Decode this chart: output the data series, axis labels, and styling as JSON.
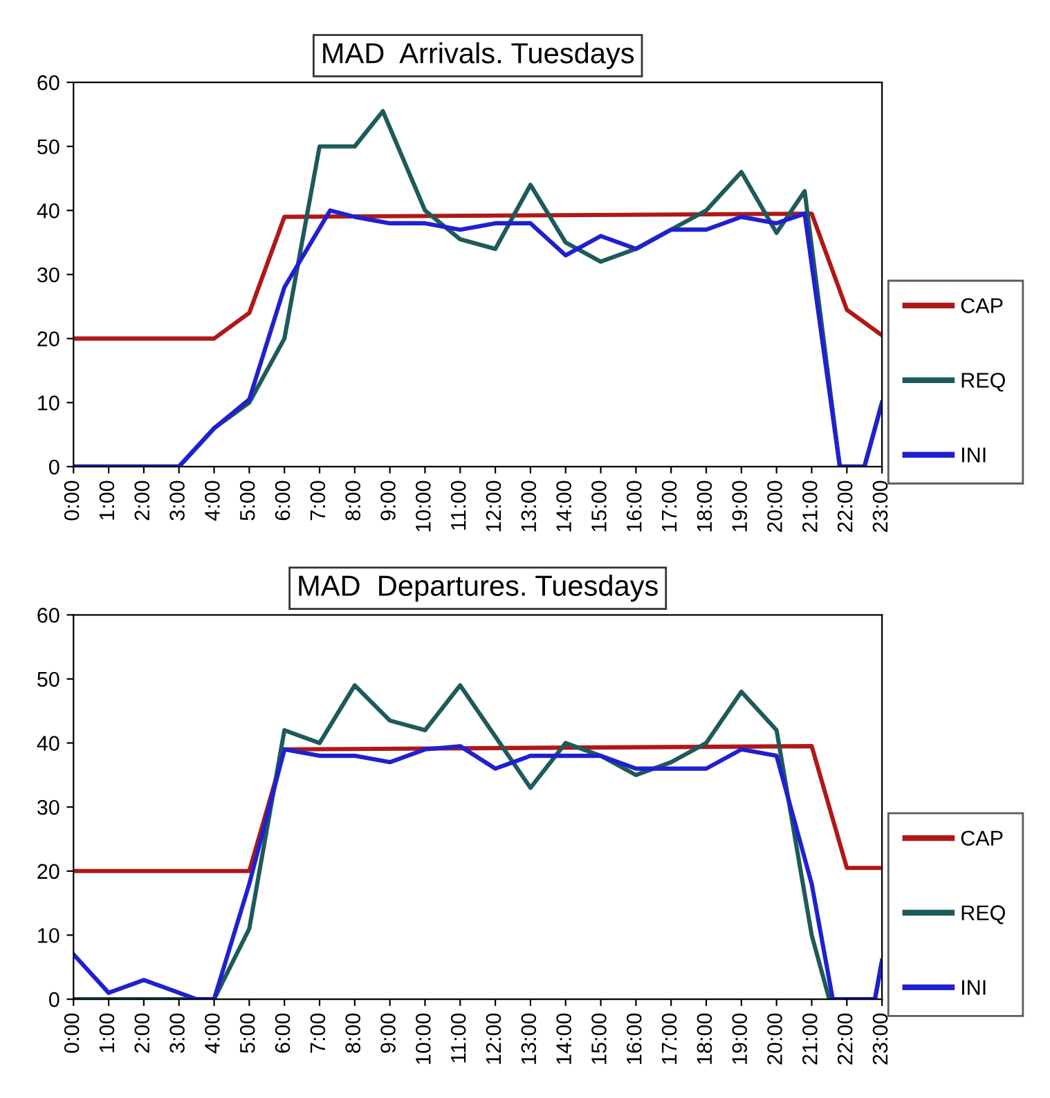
{
  "chart_data": [
    {
      "type": "line",
      "title": "MAD  Arrivals. Tuesdays",
      "xlim": [
        0,
        23
      ],
      "ylim": [
        0,
        60
      ],
      "yticks": [
        0,
        10,
        20,
        30,
        40,
        50,
        60
      ],
      "xticks": [
        {
          "value": 0,
          "label": "0:00"
        },
        {
          "value": 1,
          "label": "1:00"
        },
        {
          "value": 2,
          "label": "2:00"
        },
        {
          "value": 3,
          "label": "3:00"
        },
        {
          "value": 4,
          "label": "4:00"
        },
        {
          "value": 5,
          "label": "5:00"
        },
        {
          "value": 6,
          "label": "6:00"
        },
        {
          "value": 7,
          "label": "7:00"
        },
        {
          "value": 8,
          "label": "8:00"
        },
        {
          "value": 9,
          "label": "9:00"
        },
        {
          "value": 10,
          "label": "10:00"
        },
        {
          "value": 11,
          "label": "11:00"
        },
        {
          "value": 12,
          "label": "12:00"
        },
        {
          "value": 13,
          "label": "13:00"
        },
        {
          "value": 14,
          "label": "14:00"
        },
        {
          "value": 15,
          "label": "15:00"
        },
        {
          "value": 16,
          "label": "16:00"
        },
        {
          "value": 17,
          "label": "17:00"
        },
        {
          "value": 18,
          "label": "18:00"
        },
        {
          "value": 19,
          "label": "19:00"
        },
        {
          "value": 20,
          "label": "20:00"
        },
        {
          "value": 21,
          "label": "21:00"
        },
        {
          "value": 22,
          "label": "22:00"
        },
        {
          "value": 23,
          "label": "23:00"
        }
      ],
      "grid": false,
      "legend": "right",
      "marker": "none",
      "line_style": "solid",
      "series": [
        {
          "name": "CAP",
          "color": "#b01818",
          "x": [
            0,
            4,
            5,
            6,
            21,
            22,
            23
          ],
          "values": [
            20,
            20,
            24,
            39,
            39.5,
            24.5,
            20.5
          ]
        },
        {
          "name": "REQ",
          "color": "#1e5a5a",
          "x": [
            0,
            1,
            2,
            3,
            4,
            5,
            6,
            7,
            8,
            8.8,
            10,
            11,
            12,
            13,
            14,
            15,
            16,
            17,
            18,
            19,
            20,
            20.8,
            21.8,
            22.5,
            23
          ],
          "values": [
            0,
            0,
            0,
            0,
            6,
            10,
            20,
            50,
            50,
            55.5,
            40,
            35.5,
            34,
            44,
            35,
            32,
            34,
            37,
            40,
            46,
            36.5,
            43,
            0,
            0,
            10
          ]
        },
        {
          "name": "INI",
          "color": "#2020d0",
          "x": [
            0,
            1,
            2,
            3,
            4,
            5,
            6,
            7.3,
            8,
            9,
            10,
            11,
            12,
            13,
            14,
            15,
            16,
            17,
            18,
            19,
            20,
            20.8,
            21.8,
            22.5,
            23
          ],
          "values": [
            0,
            0,
            0,
            0,
            6,
            10.5,
            28,
            40,
            39,
            38,
            38,
            37,
            38,
            38,
            33,
            36,
            34,
            37,
            37,
            39,
            38,
            39.5,
            0,
            0,
            10
          ]
        }
      ]
    },
    {
      "type": "line",
      "title": "MAD  Departures. Tuesdays",
      "xlim": [
        0,
        23
      ],
      "ylim": [
        0,
        60
      ],
      "yticks": [
        0,
        10,
        20,
        30,
        40,
        50,
        60
      ],
      "xticks": [
        {
          "value": 0,
          "label": "0:00"
        },
        {
          "value": 1,
          "label": "1:00"
        },
        {
          "value": 2,
          "label": "2:00"
        },
        {
          "value": 3,
          "label": "3:00"
        },
        {
          "value": 4,
          "label": "4:00"
        },
        {
          "value": 5,
          "label": "5:00"
        },
        {
          "value": 6,
          "label": "6:00"
        },
        {
          "value": 7,
          "label": "7:00"
        },
        {
          "value": 8,
          "label": "8:00"
        },
        {
          "value": 9,
          "label": "9:00"
        },
        {
          "value": 10,
          "label": "10:00"
        },
        {
          "value": 11,
          "label": "11:00"
        },
        {
          "value": 12,
          "label": "12:00"
        },
        {
          "value": 13,
          "label": "13:00"
        },
        {
          "value": 14,
          "label": "14:00"
        },
        {
          "value": 15,
          "label": "15:00"
        },
        {
          "value": 16,
          "label": "16:00"
        },
        {
          "value": 17,
          "label": "17:00"
        },
        {
          "value": 18,
          "label": "18:00"
        },
        {
          "value": 19,
          "label": "19:00"
        },
        {
          "value": 20,
          "label": "20:00"
        },
        {
          "value": 21,
          "label": "21:00"
        },
        {
          "value": 22,
          "label": "22:00"
        },
        {
          "value": 23,
          "label": "23:00"
        }
      ],
      "grid": false,
      "legend": "right",
      "marker": "none",
      "line_style": "solid",
      "series": [
        {
          "name": "CAP",
          "color": "#b01818",
          "x": [
            0,
            5,
            6,
            21,
            22,
            23
          ],
          "values": [
            20,
            20,
            39,
            39.5,
            20.5,
            20.5
          ]
        },
        {
          "name": "REQ",
          "color": "#1e5a5a",
          "x": [
            0,
            1,
            2,
            3,
            4,
            5,
            6,
            7,
            8,
            9,
            10,
            11,
            12,
            13,
            14,
            15,
            16,
            17,
            18,
            19,
            20,
            21,
            21.5,
            22.8,
            23
          ],
          "values": [
            0,
            0,
            0,
            0,
            0,
            11,
            42,
            40,
            49,
            43.5,
            42,
            49,
            41,
            33,
            40,
            38,
            35,
            37,
            40,
            48,
            42,
            10,
            0,
            0,
            6
          ]
        },
        {
          "name": "INI",
          "color": "#2020d0",
          "x": [
            0,
            1,
            2,
            3,
            3.5,
            4,
            5,
            6,
            7,
            8,
            9,
            10,
            11,
            12,
            13,
            14,
            15,
            16,
            17,
            18,
            19,
            20,
            21,
            21.6,
            22.8,
            23
          ],
          "values": [
            7,
            1,
            3,
            1,
            0,
            0,
            18,
            39,
            38,
            38,
            37,
            39,
            39.5,
            36,
            38,
            38,
            38,
            36,
            36,
            36,
            39,
            38,
            18,
            0,
            0,
            6
          ]
        }
      ]
    }
  ]
}
